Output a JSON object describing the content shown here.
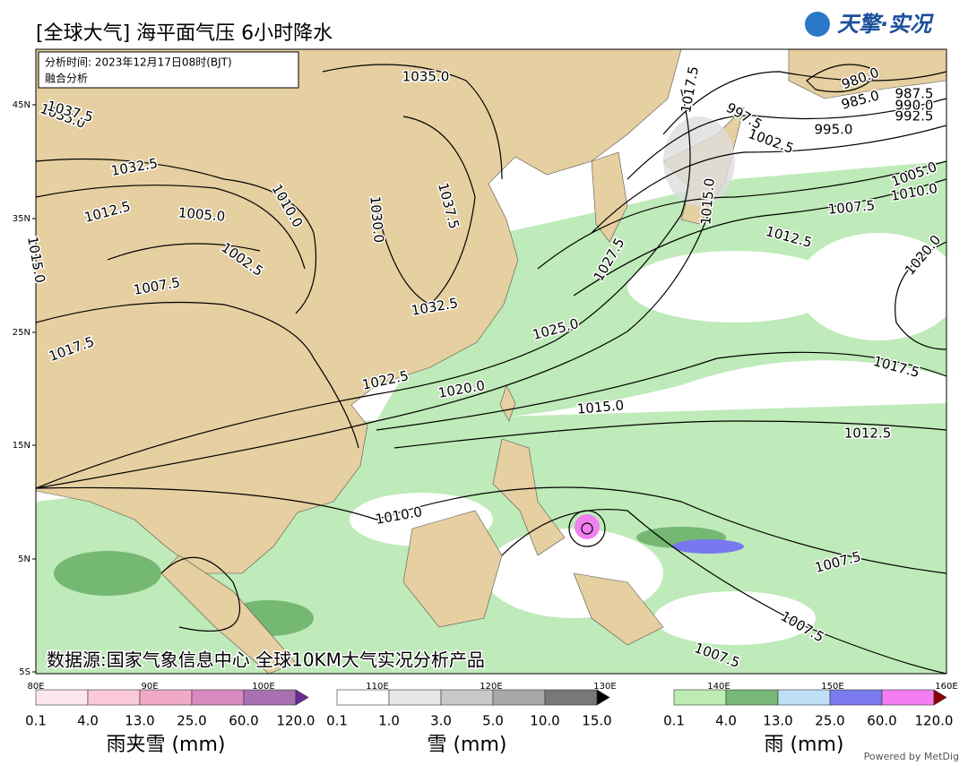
{
  "header": {
    "title": "[全球大气] 海平面气压 6小时降水",
    "logo": "天擎·实况"
  },
  "info": {
    "time": "分析时间: 2023年12月17日08时(BJT)",
    "method": "融合分析"
  },
  "source": "数据源:国家气象信息中心 全球10KM大气实况分析产品",
  "lat_labels": [
    "45N",
    "35N",
    "25N",
    "15N",
    "5N",
    "5S"
  ],
  "lon_labels": [
    "80E",
    "90E",
    "100E",
    "110E",
    "120E",
    "130E",
    "140E",
    "150E",
    "160E"
  ],
  "isobar_labels": [
    "1035.0",
    "1037.5",
    "1035.0",
    "1032.5",
    "1012.5",
    "1005.0",
    "1010.0",
    "1015.0",
    "1002.5",
    "1007.5",
    "1030.0",
    "1037.5",
    "1032.5",
    "1017.5",
    "1022.5",
    "1020.0",
    "1025.0",
    "1027.5",
    "1015.0",
    "1012.5",
    "1010.0",
    "1007.5",
    "1007.5",
    "1007.5",
    "1020.0",
    "1017.5",
    "1012.5",
    "1010.0",
    "1005.0",
    "1007.5",
    "995.0",
    "992.5",
    "990.0",
    "987.5",
    "985.0",
    "980.0",
    "1002.5",
    "997.5",
    "1017.5",
    "1015.0"
  ],
  "legends": [
    {
      "title": "雨夹雪 (mm)",
      "ticks": [
        "0.1",
        "4.0",
        "13.0",
        "25.0",
        "60.0",
        "120.0"
      ]
    },
    {
      "title": "雪 (mm)",
      "ticks": [
        "0.1",
        "1.0",
        "3.0",
        "5.0",
        "10.0",
        "15.0"
      ]
    },
    {
      "title": "雨 (mm)",
      "ticks": [
        "0.1",
        "4.0",
        "13.0",
        "25.0",
        "60.0",
        "120.0"
      ]
    }
  ],
  "footer": "Powered by MetDig"
}
